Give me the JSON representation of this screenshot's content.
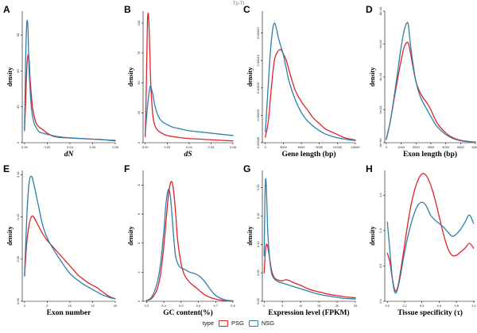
{
  "figure": {
    "top_title": "Tp-Tt",
    "legend": {
      "title": "type",
      "items": [
        {
          "label": "PSG",
          "color": "#e0232a"
        },
        {
          "label": "NSG",
          "color": "#2f7fa8"
        }
      ]
    }
  },
  "chart_data": [
    {
      "panel": "A",
      "type": "line",
      "xlabel": "dN",
      "ylabel": "density",
      "italic_x": true,
      "xlim": [
        -0.002,
        0.08
      ],
      "ylim": [
        0,
        110
      ],
      "xticks": [
        0.0,
        0.02,
        0.04,
        0.06,
        0.08
      ],
      "xticklabels": [
        "0.00",
        "0.02",
        "0.04",
        "0.06",
        "0.08"
      ],
      "yticks": [
        0,
        30,
        60,
        90
      ],
      "yticklabels": [
        "0",
        "30",
        "60",
        "90"
      ],
      "series": [
        {
          "name": "PSG",
          "color": "#e0232a",
          "x": [
            0.0,
            0.001,
            0.002,
            0.003,
            0.004,
            0.005,
            0.007,
            0.01,
            0.013,
            0.016,
            0.02,
            0.025,
            0.03,
            0.04,
            0.05,
            0.06,
            0.07,
            0.08
          ],
          "y": [
            10,
            35,
            62,
            73,
            70,
            52,
            30,
            17,
            13,
            11,
            8,
            5.5,
            4.5,
            4,
            3.5,
            3,
            2.5,
            1.5
          ]
        },
        {
          "name": "NSG",
          "color": "#2f7fa8",
          "x": [
            0.0,
            0.001,
            0.002,
            0.003,
            0.004,
            0.006,
            0.008,
            0.01,
            0.013,
            0.016,
            0.02,
            0.025,
            0.03,
            0.04,
            0.05,
            0.06,
            0.07,
            0.08
          ],
          "y": [
            10,
            70,
            100,
            96,
            62,
            30,
            18,
            13,
            9,
            8,
            7,
            6,
            5,
            4,
            3.5,
            3,
            2.5,
            2
          ]
        }
      ]
    },
    {
      "panel": "B",
      "type": "line",
      "xlabel": "dS",
      "ylabel": "density",
      "italic_x": true,
      "xlim": [
        -0.002,
        0.08
      ],
      "ylim": [
        0,
        110
      ],
      "xticks": [
        0.0,
        0.02,
        0.04,
        0.06,
        0.08
      ],
      "xticklabels": [
        "0.00",
        "0.02",
        "0.04",
        "0.06",
        "0.08"
      ],
      "yticks": [
        0,
        25,
        50,
        75,
        100
      ],
      "yticklabels": [
        "0",
        "25",
        "50",
        "75",
        "100"
      ],
      "series": [
        {
          "name": "PSG",
          "color": "#e0232a",
          "x": [
            0.0,
            0.001,
            0.002,
            0.003,
            0.004,
            0.005,
            0.007,
            0.01,
            0.015,
            0.02,
            0.03,
            0.04,
            0.05,
            0.06,
            0.07,
            0.08
          ],
          "y": [
            5,
            50,
            102,
            105,
            80,
            50,
            22,
            12,
            8,
            6,
            4.5,
            3.5,
            3,
            2.5,
            2,
            1.5
          ]
        },
        {
          "name": "NSG",
          "color": "#2f7fa8",
          "x": [
            0.0,
            0.002,
            0.004,
            0.005,
            0.007,
            0.009,
            0.012,
            0.015,
            0.02,
            0.025,
            0.03,
            0.04,
            0.05,
            0.06,
            0.07,
            0.08
          ],
          "y": [
            8,
            30,
            45,
            47,
            40,
            30,
            22,
            18,
            15,
            13,
            12,
            10,
            9,
            8,
            7,
            6
          ]
        }
      ]
    },
    {
      "panel": "C",
      "type": "line",
      "xlabel": "Gene length (bp)",
      "ylabel": "density",
      "xlim": [
        -500,
        15000
      ],
      "ylim": [
        0,
        0.00024
      ],
      "xticks": [
        0,
        3000,
        6000,
        9000,
        12000,
        15000
      ],
      "xticklabels": [
        "0",
        "3000",
        "6000",
        "9000",
        "12000",
        "15000"
      ],
      "yticks": [
        0.0,
        5e-05,
        0.0001,
        0.00015,
        0.0002
      ],
      "yticklabels": [
        "0.00000",
        "0.00005",
        "0.00010",
        "0.00015",
        "0.00020"
      ],
      "series": [
        {
          "name": "PSG",
          "color": "#e0232a",
          "x": [
            0,
            500,
            1000,
            1500,
            2000,
            2500,
            3000,
            3500,
            4000,
            5000,
            6000,
            7000,
            8000,
            9000,
            10000,
            11000,
            12000,
            13000,
            14000,
            15000
          ],
          "y": [
            1e-05,
            4e-05,
            0.0001,
            0.00015,
            0.000165,
            0.00017,
            0.000162,
            0.00015,
            0.00013,
            9.5e-05,
            7.5e-05,
            6e-05,
            4.5e-05,
            3.5e-05,
            2.5e-05,
            2e-05,
            1.5e-05,
            1e-05,
            7e-06,
            5e-06
          ]
        },
        {
          "name": "NSG",
          "color": "#2f7fa8",
          "x": [
            0,
            400,
            800,
            1200,
            1500,
            1800,
            2200,
            2600,
            3000,
            3500,
            4000,
            5000,
            6000,
            7000,
            8000,
            9000,
            10000,
            11000,
            12000,
            13000,
            14000,
            15000
          ],
          "y": [
            2e-05,
            9e-05,
            0.00016,
            0.000205,
            0.000218,
            0.00021,
            0.00019,
            0.000175,
            0.00016,
            0.000135,
            0.00011,
            7.8e-05,
            5.5e-05,
            4e-05,
            3e-05,
            2.2e-05,
            1.6e-05,
            1.2e-05,
            9e-06,
            7e-06,
            5e-06,
            4e-06
          ]
        }
      ]
    },
    {
      "panel": "D",
      "type": "line",
      "xlabel": "Exon length (bp)",
      "ylabel": "density",
      "xlim": [
        -100,
        6000
      ],
      "ylim": [
        0,
        0.0008
      ],
      "xticks": [
        0,
        1000,
        2000,
        3000,
        4000,
        5000,
        6000
      ],
      "xticklabels": [
        "0",
        "1000",
        "2000",
        "3000",
        "4000",
        "5000",
        "6000"
      ],
      "yticks": [
        0,
        0.0002,
        0.0004,
        0.0006,
        0.0008
      ],
      "yticklabels": [
        "0e+00",
        "2e-04",
        "4e-04",
        "6e-04",
        "8e-04"
      ],
      "series": [
        {
          "name": "PSG",
          "color": "#e0232a",
          "x": [
            0,
            250,
            500,
            750,
            1000,
            1200,
            1400,
            1500,
            1600,
            1800,
            2000,
            2250,
            2500,
            2750,
            3000,
            3250,
            3500,
            4000,
            4500,
            5000,
            5500,
            6000
          ],
          "y": [
            2e-05,
            0.00012,
            0.00025,
            0.00038,
            0.0005,
            0.00058,
            0.00061,
            0.0006,
            0.00056,
            0.00046,
            0.00037,
            0.00031,
            0.00027,
            0.00024,
            0.0002,
            0.00015,
            0.00011,
            6e-05,
            3e-05,
            1.5e-05,
            8e-06,
            4e-06
          ]
        },
        {
          "name": "NSG",
          "color": "#2f7fa8",
          "x": [
            0,
            250,
            500,
            750,
            1000,
            1200,
            1400,
            1500,
            1600,
            1800,
            2000,
            2250,
            2500,
            2750,
            3000,
            3250,
            3500,
            4000,
            4500,
            5000,
            5500,
            6000
          ],
          "y": [
            2e-05,
            0.00012,
            0.00026,
            0.00042,
            0.00058,
            0.00068,
            0.00073,
            0.00071,
            0.00062,
            0.00048,
            0.00037,
            0.00029,
            0.00024,
            0.0002,
            0.00016,
            0.00012,
            9e-05,
            5e-05,
            2.5e-05,
            1.2e-05,
            6e-06,
            3e-06
          ]
        }
      ]
    },
    {
      "panel": "E",
      "type": "line",
      "xlabel": "Exon number",
      "ylabel": "density",
      "xlim": [
        -0.5,
        20
      ],
      "ylim": [
        0,
        0.155
      ],
      "xticks": [
        0,
        5,
        10,
        15,
        20
      ],
      "xticklabels": [
        "0",
        "5",
        "10",
        "15",
        "20"
      ],
      "yticks": [
        0.0,
        0.05,
        0.1,
        0.15
      ],
      "yticklabels": [
        "0.00",
        "0.05",
        "0.10",
        "0.15"
      ],
      "series": [
        {
          "name": "PSG",
          "color": "#e0232a",
          "x": [
            0,
            0.5,
            1,
            1.5,
            2,
            3,
            4,
            5,
            6,
            7,
            8,
            9,
            10,
            11,
            12,
            13,
            14,
            15,
            16,
            17,
            18,
            19,
            20
          ],
          "y": [
            0.03,
            0.07,
            0.09,
            0.1,
            0.1,
            0.09,
            0.08,
            0.072,
            0.066,
            0.06,
            0.054,
            0.048,
            0.042,
            0.036,
            0.03,
            0.026,
            0.022,
            0.019,
            0.016,
            0.012,
            0.008,
            0.005,
            0.003
          ]
        },
        {
          "name": "NSG",
          "color": "#2f7fa8",
          "x": [
            0,
            0.5,
            1,
            1.5,
            2,
            3,
            4,
            5,
            6,
            7,
            8,
            9,
            10,
            11,
            12,
            13,
            14,
            15,
            16,
            17,
            18,
            19,
            20
          ],
          "y": [
            0.03,
            0.1,
            0.14,
            0.148,
            0.14,
            0.115,
            0.09,
            0.075,
            0.065,
            0.056,
            0.048,
            0.04,
            0.033,
            0.028,
            0.024,
            0.02,
            0.017,
            0.014,
            0.011,
            0.008,
            0.006,
            0.004,
            0.003
          ]
        }
      ]
    },
    {
      "panel": "F",
      "type": "line",
      "xlabel": "GC content(%)",
      "ylabel": "density",
      "xlim": [
        0.28,
        0.8
      ],
      "ylim": [
        0,
        9
      ],
      "xticks": [
        0.3,
        0.4,
        0.5,
        0.6,
        0.7,
        0.8
      ],
      "xticklabels": [
        "0.3",
        "0.4",
        "0.5",
        "0.6",
        "0.7",
        "0.8"
      ],
      "yticks": [
        0,
        2,
        4,
        6,
        8
      ],
      "yticklabels": [
        "0",
        "2",
        "4",
        "6",
        "8"
      ],
      "series": [
        {
          "name": "PSG",
          "color": "#e0232a",
          "x": [
            0.3,
            0.33,
            0.36,
            0.38,
            0.4,
            0.42,
            0.43,
            0.44,
            0.45,
            0.46,
            0.47,
            0.48,
            0.5,
            0.52,
            0.55,
            0.58,
            0.6,
            0.63,
            0.66,
            0.7,
            0.75,
            0.8
          ],
          "y": [
            0.05,
            0.2,
            0.8,
            1.8,
            3.8,
            6.5,
            7.6,
            8.2,
            8.1,
            7.2,
            5.8,
            4.2,
            2.6,
            1.8,
            1.3,
            1.0,
            0.8,
            0.5,
            0.3,
            0.15,
            0.05,
            0.02
          ]
        },
        {
          "name": "NSG",
          "color": "#2f7fa8",
          "x": [
            0.3,
            0.33,
            0.36,
            0.38,
            0.4,
            0.41,
            0.42,
            0.43,
            0.44,
            0.45,
            0.46,
            0.47,
            0.49,
            0.52,
            0.55,
            0.58,
            0.61,
            0.64,
            0.67,
            0.7,
            0.73,
            0.76,
            0.8
          ],
          "y": [
            0.05,
            0.3,
            1.2,
            2.5,
            4.8,
            6.4,
            7.4,
            7.7,
            7.0,
            5.5,
            4.0,
            3.0,
            2.4,
            2.2,
            2.0,
            1.9,
            1.7,
            1.3,
            0.8,
            0.4,
            0.2,
            0.08,
            0.03
          ]
        }
      ]
    },
    {
      "panel": "G",
      "type": "line",
      "xlabel": "Expression level (FPKM)",
      "ylabel": "density",
      "xlim": [
        -0.5,
        25
      ],
      "ylim": [
        0,
        0.23
      ],
      "xticks": [
        0,
        5,
        10,
        15,
        20,
        25
      ],
      "xticklabels": [
        "0",
        "5",
        "10",
        "15",
        "20",
        "25"
      ],
      "yticks": [
        0.0,
        0.05,
        0.1,
        0.15,
        0.2
      ],
      "yticklabels": [
        "0.00",
        "0.05",
        "0.10",
        "0.15",
        "0.20"
      ],
      "series": [
        {
          "name": "PSG",
          "color": "#e0232a",
          "x": [
            0,
            0.3,
            0.6,
            1,
            1.5,
            2,
            2.5,
            3,
            4,
            5,
            6,
            7,
            8,
            10,
            12,
            14,
            16,
            18,
            20,
            22,
            25
          ],
          "y": [
            0.05,
            0.085,
            0.1,
            0.095,
            0.075,
            0.055,
            0.045,
            0.04,
            0.037,
            0.036,
            0.038,
            0.036,
            0.033,
            0.028,
            0.022,
            0.018,
            0.015,
            0.012,
            0.01,
            0.008,
            0.006
          ]
        },
        {
          "name": "NSG",
          "color": "#2f7fa8",
          "x": [
            0,
            0.2,
            0.4,
            0.6,
            0.8,
            1,
            1.5,
            2,
            2.5,
            3,
            4,
            5,
            6,
            8,
            10,
            12,
            14,
            16,
            18,
            20,
            22,
            25
          ],
          "y": [
            0.08,
            0.18,
            0.215,
            0.2,
            0.16,
            0.12,
            0.075,
            0.05,
            0.042,
            0.038,
            0.034,
            0.032,
            0.03,
            0.026,
            0.022,
            0.018,
            0.014,
            0.011,
            0.009,
            0.007,
            0.005,
            0.004
          ]
        }
      ]
    },
    {
      "panel": "H",
      "type": "line",
      "xlabel": "Tissue specificity (τ)",
      "ylabel": "density",
      "xlim": [
        -0.03,
        1.02
      ],
      "ylim": [
        0,
        1.85
      ],
      "xticks": [
        0.0,
        0.2,
        0.4,
        0.6,
        0.8,
        1.0
      ],
      "xticklabels": [
        "0.0",
        "0.2",
        "0.4",
        "0.6",
        "0.8",
        "1.0"
      ],
      "yticks": [
        0.0,
        0.5,
        1.0,
        1.5
      ],
      "yticklabels": [
        "0.0",
        "0.5",
        "1.0",
        "1.5"
      ],
      "series": [
        {
          "name": "PSG",
          "color": "#e0232a",
          "x": [
            0.0,
            0.03,
            0.06,
            0.09,
            0.12,
            0.15,
            0.2,
            0.25,
            0.3,
            0.35,
            0.4,
            0.45,
            0.5,
            0.55,
            0.6,
            0.65,
            0.7,
            0.75,
            0.8,
            0.85,
            0.9,
            0.95,
            1.0
          ],
          "y": [
            0.68,
            0.55,
            0.3,
            0.15,
            0.2,
            0.4,
            0.8,
            1.2,
            1.5,
            1.7,
            1.8,
            1.78,
            1.65,
            1.45,
            1.2,
            0.95,
            0.75,
            0.65,
            0.65,
            0.7,
            0.75,
            0.82,
            0.75
          ]
        },
        {
          "name": "NSG",
          "color": "#2f7fa8",
          "x": [
            0.0,
            0.03,
            0.06,
            0.09,
            0.12,
            0.15,
            0.2,
            0.25,
            0.3,
            0.35,
            0.4,
            0.45,
            0.5,
            0.55,
            0.6,
            0.65,
            0.7,
            0.75,
            0.8,
            0.85,
            0.9,
            0.95,
            1.0
          ],
          "y": [
            1.12,
            0.7,
            0.3,
            0.12,
            0.18,
            0.35,
            0.7,
            0.98,
            1.2,
            1.35,
            1.4,
            1.35,
            1.22,
            1.15,
            1.1,
            1.05,
            0.98,
            0.92,
            0.95,
            1.02,
            1.12,
            1.22,
            1.1
          ]
        }
      ]
    }
  ]
}
